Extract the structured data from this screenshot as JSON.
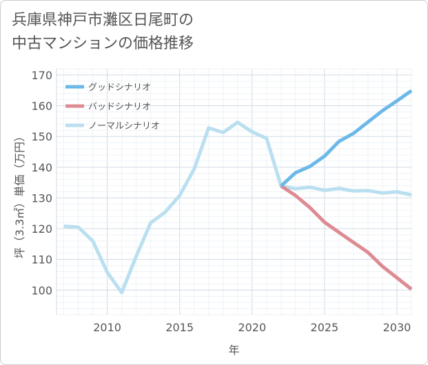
{
  "title_lines": [
    "兵庫県神戸市灘区日尾町の",
    "中古マンションの価格推移"
  ],
  "chart_data": {
    "type": "line",
    "title": "兵庫県神戸市灘区日尾町の中古マンションの価格推移",
    "xlabel": "年",
    "ylabel": "坪（3.3㎡）単価（万円）",
    "xlim": [
      2006.5,
      2031
    ],
    "ylim": [
      92,
      172
    ],
    "xticks": [
      2010,
      2015,
      2020,
      2025,
      2030
    ],
    "yticks": [
      100,
      110,
      120,
      130,
      140,
      150,
      160,
      170
    ],
    "grid": true,
    "legend_position": "top-left",
    "series": [
      {
        "name": "グッドシナリオ",
        "color": "#6cb8e8",
        "x": [
          2022,
          2023,
          2024,
          2025,
          2026,
          2027,
          2028,
          2029,
          2030,
          2031
        ],
        "values": [
          133.9,
          138.2,
          140.3,
          143.6,
          148.4,
          151.0,
          154.7,
          158.4,
          161.6,
          164.9
        ]
      },
      {
        "name": "バッドシナリオ",
        "color": "#de8a93",
        "x": [
          2022,
          2023,
          2024,
          2025,
          2026,
          2027,
          2028,
          2029,
          2030,
          2031
        ],
        "values": [
          133.9,
          130.8,
          126.8,
          122.1,
          118.8,
          115.5,
          112.3,
          107.7,
          104.0,
          100.3
        ]
      },
      {
        "name": "ノーマルシナリオ",
        "color": "#b9dff0",
        "x": [
          2007,
          2008,
          2009,
          2010,
          2011,
          2012,
          2013,
          2014,
          2015,
          2016,
          2017,
          2018,
          2019,
          2020,
          2021,
          2022,
          2023,
          2024,
          2025,
          2026,
          2027,
          2028,
          2029,
          2030,
          2031
        ],
        "values": [
          120.8,
          120.5,
          116.0,
          105.8,
          99.2,
          111.0,
          121.9,
          125.4,
          130.8,
          139.4,
          152.8,
          151.3,
          154.6,
          151.5,
          149.4,
          133.9,
          133.0,
          133.5,
          132.5,
          133.1,
          132.3,
          132.4,
          131.6,
          132.0,
          131.0
        ]
      }
    ]
  }
}
